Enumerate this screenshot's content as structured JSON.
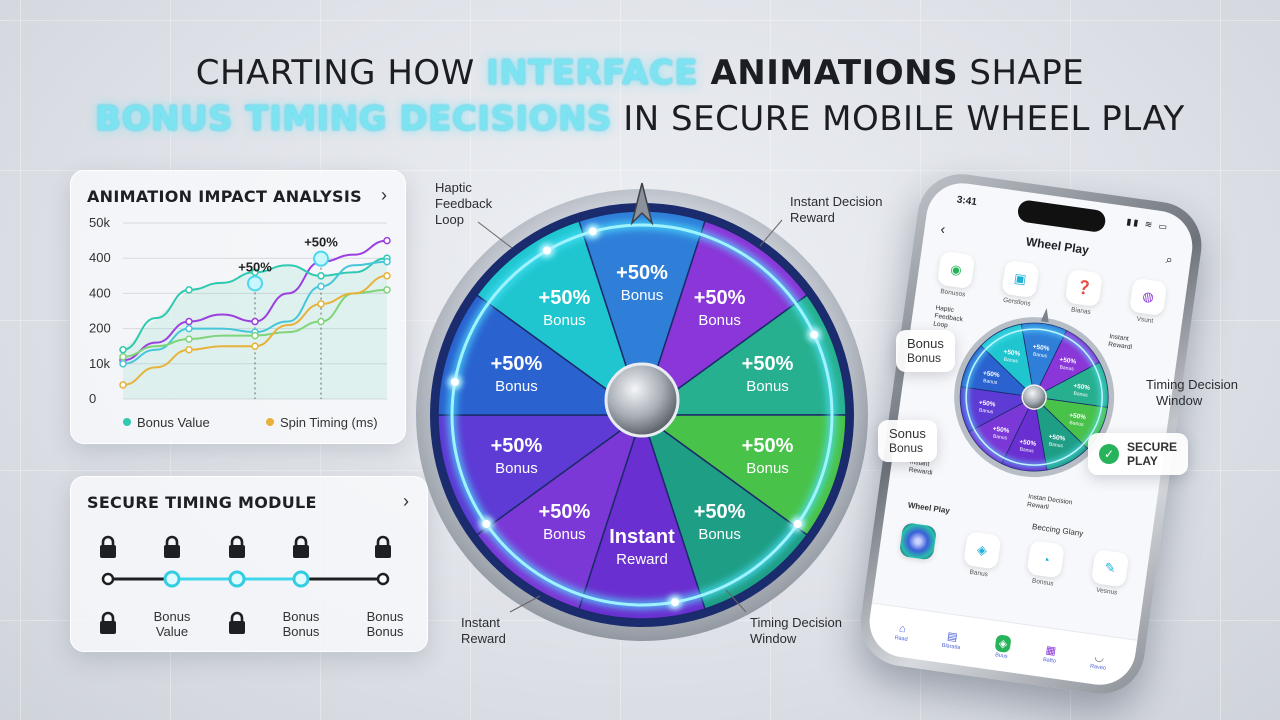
{
  "headline": {
    "l1_a": "CHARTING HOW ",
    "l1_b": "INTERFACE",
    "l1_c": " ANIMATIONS",
    "l1_d": " SHAPE",
    "l2_a": "BONUS TIMING DECISIONS",
    "l2_b": " IN SECURE MOBILE WHEEL PLAY"
  },
  "chart_panel": {
    "title": "ANIMATION IMPACT ANALYSIS",
    "chevron": "›",
    "y_ticks": [
      "50k",
      "400",
      "400",
      "200",
      "10k",
      "0"
    ],
    "annotations": [
      "+50%",
      "+50%"
    ],
    "legend": [
      {
        "label": "Bonus Value",
        "color": "#2ec9b0"
      },
      {
        "label": "Spin Timing (ms)",
        "color": "#e8b23a"
      }
    ]
  },
  "chart_data": {
    "type": "line",
    "title": "ANIMATION IMPACT ANALYSIS",
    "y_tick_labels": [
      "50k",
      "400",
      "400",
      "200",
      "10k",
      "0"
    ],
    "x": [
      0,
      1,
      2,
      3,
      4,
      5,
      6,
      7,
      8
    ],
    "ylim": [
      0,
      5
    ],
    "grid": true,
    "legend_position": "bottom",
    "series": [
      {
        "name": "",
        "color": "#9b3fe0",
        "values": [
          1.1,
          1.6,
          2.2,
          2.4,
          2.2,
          3.0,
          3.9,
          4.1,
          4.5
        ]
      },
      {
        "name": "",
        "color": "#2ec9b0",
        "values": [
          1.4,
          2.3,
          3.1,
          3.3,
          3.6,
          3.8,
          3.5,
          3.6,
          4.0
        ]
      },
      {
        "name": "Bonus Value",
        "color": "#46c6d8",
        "values": [
          1.0,
          1.4,
          2.0,
          2.0,
          1.9,
          2.2,
          3.2,
          3.8,
          3.9
        ]
      },
      {
        "name": "",
        "color": "#7fd47a",
        "values": [
          1.2,
          1.5,
          1.7,
          1.8,
          1.8,
          1.9,
          2.2,
          3.0,
          3.1
        ]
      },
      {
        "name": "Spin Timing (ms)",
        "color": "#e8b23a",
        "values": [
          0.4,
          0.9,
          1.4,
          1.5,
          1.5,
          2.1,
          2.7,
          3.0,
          3.5
        ]
      }
    ],
    "annotations": [
      {
        "label": "+50%",
        "x": 4,
        "y": 3.4
      },
      {
        "label": "+50%",
        "x": 6,
        "y": 4.1
      }
    ]
  },
  "module_panel": {
    "title": "SECURE TIMING MODULE",
    "chevron": "›",
    "labels": [
      "Bonus\nValue",
      "Bonus\nBonus",
      "Bonus\nBonus"
    ],
    "labels_l1": [
      "Bonus",
      "Bonus",
      "Bonus"
    ],
    "labels_l2": [
      "Value",
      "Bonus",
      "Bonus"
    ]
  },
  "wheel": {
    "segments": [
      {
        "line1": "+50%",
        "line2": "Bonus",
        "color": "#2f7fd9"
      },
      {
        "line1": "+50%",
        "line2": "Bonus",
        "color": "#8a36d8"
      },
      {
        "line1": "+50%",
        "line2": "Bonus",
        "color": "#27b08f"
      },
      {
        "line1": "+50%",
        "line2": "Bonus",
        "color": "#49c24a"
      },
      {
        "line1": "+50%",
        "line2": "Bonus",
        "color": "#1f9e86"
      },
      {
        "line1": "Instant",
        "line2": "Reward",
        "color": "#6a2fd0"
      },
      {
        "line1": "+50%",
        "line2": "Bonus",
        "color": "#7b38d6"
      },
      {
        "line1": "+50%",
        "line2": "Bonus",
        "color": "#5d3bd4"
      },
      {
        "line1": "+50%",
        "line2": "Bonus",
        "color": "#2a63d0"
      },
      {
        "line1": "+50%",
        "line2": "Bonus",
        "color": "#1fc6cf"
      }
    ],
    "annotations": {
      "haptic": [
        "Haptic",
        "Feedback",
        "Loop"
      ],
      "instant_top": [
        "Instant Decision",
        "Reward"
      ],
      "instant_bottom": [
        "Instant",
        "Reward"
      ],
      "timing": [
        "Timing Decision",
        "Window"
      ]
    }
  },
  "phone": {
    "time": "3:41",
    "status": "▮▮ ≋ ▭",
    "header": "Wheel Play",
    "icons": [
      {
        "label": "Bonusos",
        "glyph": "◉",
        "color": "#27b35a"
      },
      {
        "label": "Gerstlons",
        "glyph": "▣",
        "color": "#1fb0d8"
      },
      {
        "label": "Bianas",
        "glyph": "❓",
        "color": "#1fb0d8"
      },
      {
        "label": "Vsunt",
        "glyph": "◍",
        "color": "#8a36d8"
      }
    ],
    "mini_labels": {
      "haptic": [
        "Haptic",
        "Feedback",
        "Loop"
      ],
      "instant": [
        "Instant",
        "Rewardl"
      ],
      "instant2": [
        "Instant",
        "Rewardi"
      ],
      "decision": [
        "Instan Decision",
        "Rewarll"
      ]
    },
    "mini_wheel_text": [
      "+50%",
      "Banus"
    ],
    "section_left": "Wheel Play",
    "section_right": "Beccing Glany",
    "bottom_icons": [
      "Banus",
      "Bonsus",
      "Vesnus"
    ],
    "tabs": [
      {
        "label": "Raad",
        "glyph": "⌂"
      },
      {
        "label": "Blaratla",
        "glyph": "▤"
      },
      {
        "label": "Buus",
        "glyph": "◈"
      },
      {
        "label": "Bafto",
        "glyph": "▦"
      },
      {
        "label": "Raveo",
        "glyph": "◡"
      }
    ]
  },
  "floating": {
    "bonus1": [
      "Bonus",
      "Bonus"
    ],
    "bonus2": [
      "Sonus",
      "Bonus"
    ],
    "secure": [
      "SECURE",
      "PLAY"
    ],
    "timing": [
      "Timing Decision",
      "Window"
    ]
  }
}
